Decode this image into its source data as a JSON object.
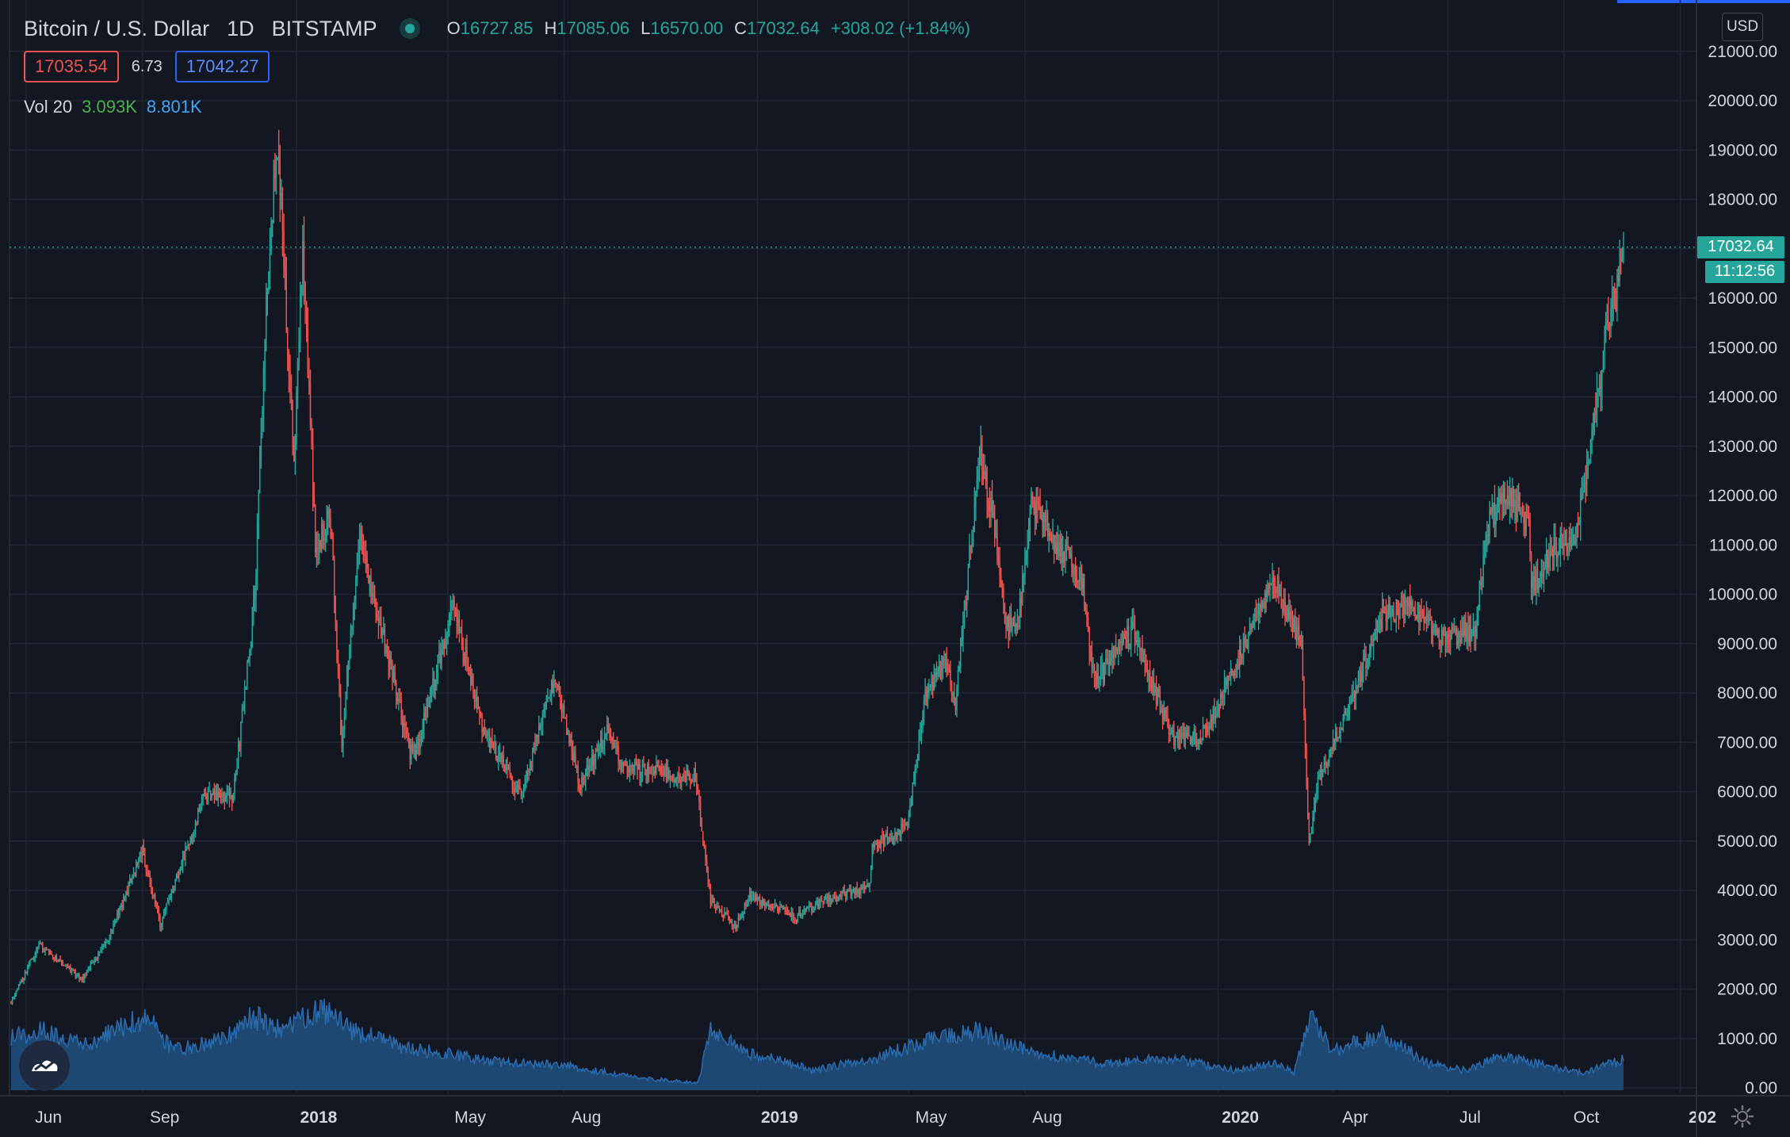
{
  "header": {
    "symbol": "Bitcoin / U.S. Dollar",
    "interval": "1D",
    "exchange": "BITSTAMP",
    "ohlc": {
      "open_label": "O",
      "open": "16727.85",
      "high_label": "H",
      "high": "17085.06",
      "low_label": "L",
      "low": "16570.00",
      "close_label": "C",
      "close": "17032.64",
      "change": "+308.02 (+1.84%)"
    },
    "bid": "17035.54",
    "spread": "6.73",
    "ask": "17042.27",
    "volume": {
      "label": "Vol 20",
      "value": "3.093K",
      "ma": "8.801K"
    },
    "currency": "USD"
  },
  "price_axis": {
    "last_price": "17032.64",
    "countdown": "11:12:56"
  },
  "colors": {
    "background": "#131722",
    "grid": "#232632",
    "up": "#26a69a",
    "down": "#ef5350",
    "volume_fill": "#1f4e7a",
    "volume_line": "#2a6bb0",
    "text": "#d1d4dc",
    "accent": "#2962ff"
  },
  "chart_data": {
    "type": "candlestick",
    "y_axis": {
      "min": 0,
      "max": 21000,
      "ticks": [
        0,
        1000,
        2000,
        3000,
        4000,
        5000,
        6000,
        7000,
        8000,
        9000,
        10000,
        11000,
        12000,
        13000,
        14000,
        15000,
        16000,
        17000,
        18000,
        19000,
        20000,
        21000
      ],
      "tick_labels": [
        "0.00",
        "1000.00",
        "2000.00",
        "3000.00",
        "4000.00",
        "5000.00",
        "6000.00",
        "7000.00",
        "8000.00",
        "9000.00",
        "10000.00",
        "11000.00",
        "12000.00",
        "13000.00",
        "14000.00",
        "15000.00",
        "16000.00",
        "17000.00",
        "18000.00",
        "19000.00",
        "20000.00",
        "21000.00"
      ],
      "position": "right"
    },
    "x_axis": {
      "start_date": "2017-05-20",
      "end_date": "2020-12-31",
      "ticks": [
        {
          "date": "2017-06-01",
          "label": "Jun",
          "bold": false
        },
        {
          "date": "2017-09-01",
          "label": "Sep",
          "bold": false
        },
        {
          "date": "2018-01-01",
          "label": "2018",
          "bold": true
        },
        {
          "date": "2018-05-01",
          "label": "May",
          "bold": false
        },
        {
          "date": "2018-08-01",
          "label": "Aug",
          "bold": false
        },
        {
          "date": "2019-01-01",
          "label": "2019",
          "bold": true
        },
        {
          "date": "2019-05-01",
          "label": "May",
          "bold": false
        },
        {
          "date": "2019-08-01",
          "label": "Aug",
          "bold": false
        },
        {
          "date": "2020-01-01",
          "label": "2020",
          "bold": true
        },
        {
          "date": "2020-04-01",
          "label": "Apr",
          "bold": false
        },
        {
          "date": "2020-07-01",
          "label": "Jul",
          "bold": false
        },
        {
          "date": "2020-10-01",
          "label": "Oct",
          "bold": false
        },
        {
          "date": "2021-01-01",
          "label": "202",
          "bold": true
        }
      ]
    },
    "grid": true,
    "price_key_points": [
      [
        "2017-05-20",
        1750
      ],
      [
        "2017-06-11",
        2900
      ],
      [
        "2017-07-15",
        2200
      ],
      [
        "2017-08-05",
        3000
      ],
      [
        "2017-09-01",
        4800
      ],
      [
        "2017-09-15",
        3300
      ],
      [
        "2017-10-20",
        5900
      ],
      [
        "2017-11-12",
        5900
      ],
      [
        "2017-11-29",
        9900
      ],
      [
        "2017-12-08",
        16000
      ],
      [
        "2017-12-17",
        19300
      ],
      [
        "2017-12-30",
        12500
      ],
      [
        "2018-01-06",
        17000
      ],
      [
        "2018-01-16",
        11000
      ],
      [
        "2018-01-28",
        11500
      ],
      [
        "2018-02-06",
        7000
      ],
      [
        "2018-02-20",
        11200
      ],
      [
        "2018-04-01",
        6800
      ],
      [
        "2018-04-05",
        6700
      ],
      [
        "2018-05-05",
        9800
      ],
      [
        "2018-05-28",
        7300
      ],
      [
        "2018-06-28",
        5900
      ],
      [
        "2018-07-24",
        8300
      ],
      [
        "2018-08-14",
        6100
      ],
      [
        "2018-09-05",
        7300
      ],
      [
        "2018-09-15",
        6500
      ],
      [
        "2018-11-13",
        6300
      ],
      [
        "2018-11-25",
        3800
      ],
      [
        "2018-12-15",
        3250
      ],
      [
        "2018-12-26",
        3900
      ],
      [
        "2019-01-31",
        3450
      ],
      [
        "2019-02-24",
        3800
      ],
      [
        "2019-03-31",
        4100
      ],
      [
        "2019-04-02",
        4900
      ],
      [
        "2019-04-30",
        5300
      ],
      [
        "2019-05-14",
        8000
      ],
      [
        "2019-05-30",
        8600
      ],
      [
        "2019-06-07",
        7800
      ],
      [
        "2019-06-26",
        12900
      ],
      [
        "2019-07-08",
        11400
      ],
      [
        "2019-07-17",
        9300
      ],
      [
        "2019-07-27",
        9500
      ],
      [
        "2019-08-06",
        11800
      ],
      [
        "2019-09-15",
        10300
      ],
      [
        "2019-09-25",
        8200
      ],
      [
        "2019-10-25",
        9300
      ],
      [
        "2019-11-25",
        7100
      ],
      [
        "2019-12-18",
        7100
      ],
      [
        "2020-01-07",
        8100
      ],
      [
        "2020-02-13",
        10300
      ],
      [
        "2020-03-07",
        9000
      ],
      [
        "2020-03-13",
        4900
      ],
      [
        "2020-03-20",
        6200
      ],
      [
        "2020-04-29",
        8800
      ],
      [
        "2020-05-10",
        9600
      ],
      [
        "2020-06-01",
        9800
      ],
      [
        "2020-06-27",
        9100
      ],
      [
        "2020-07-22",
        9300
      ],
      [
        "2020-08-02",
        11400
      ],
      [
        "2020-08-17",
        12100
      ],
      [
        "2020-09-03",
        11300
      ],
      [
        "2020-09-05",
        10100
      ],
      [
        "2020-09-20",
        10900
      ],
      [
        "2020-10-10",
        11100
      ],
      [
        "2020-10-21",
        12900
      ],
      [
        "2020-11-05",
        15500
      ],
      [
        "2020-11-13",
        16300
      ],
      [
        "2020-11-17",
        17032
      ]
    ],
    "volume_key_points": [
      [
        "2017-05-20",
        1100
      ],
      [
        "2017-06-15",
        1200
      ],
      [
        "2017-07-20",
        900
      ],
      [
        "2017-08-15",
        1300
      ],
      [
        "2017-09-05",
        1500
      ],
      [
        "2017-09-25",
        800
      ],
      [
        "2017-11-01",
        1000
      ],
      [
        "2017-11-28",
        1500
      ],
      [
        "2017-12-20",
        1200
      ],
      [
        "2018-01-20",
        1650
      ],
      [
        "2018-02-15",
        1200
      ],
      [
        "2018-04-01",
        850
      ],
      [
        "2018-06-01",
        600
      ],
      [
        "2018-08-01",
        500
      ],
      [
        "2018-10-01",
        250
      ],
      [
        "2018-11-15",
        150
      ],
      [
        "2018-11-25",
        1300
      ],
      [
        "2018-12-20",
        800
      ],
      [
        "2019-02-15",
        400
      ],
      [
        "2019-04-10",
        700
      ],
      [
        "2019-05-20",
        1050
      ],
      [
        "2019-06-25",
        1200
      ],
      [
        "2019-08-01",
        800
      ],
      [
        "2019-10-01",
        550
      ],
      [
        "2019-11-25",
        650
      ],
      [
        "2020-01-15",
        400
      ],
      [
        "2020-02-15",
        550
      ],
      [
        "2020-03-01",
        350
      ],
      [
        "2020-03-14",
        1500
      ],
      [
        "2020-04-01",
        800
      ],
      [
        "2020-05-10",
        1150
      ],
      [
        "2020-06-15",
        550
      ],
      [
        "2020-07-15",
        400
      ],
      [
        "2020-08-10",
        700
      ],
      [
        "2020-09-10",
        550
      ],
      [
        "2020-10-15",
        350
      ],
      [
        "2020-11-17",
        620
      ]
    ]
  }
}
